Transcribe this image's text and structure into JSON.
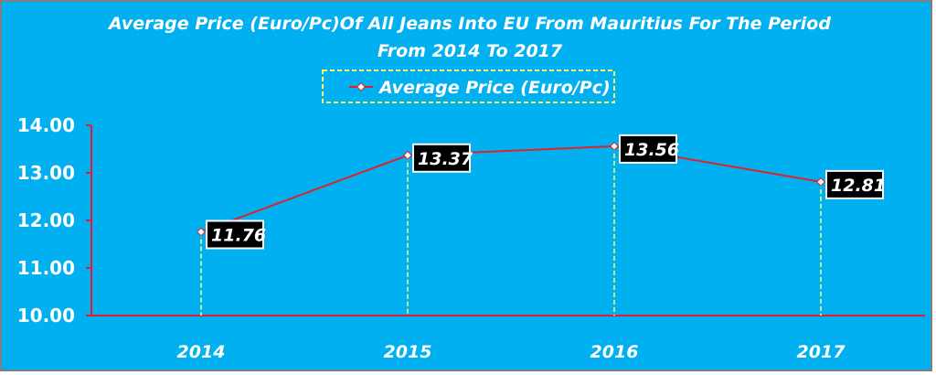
{
  "colors": {
    "background": "#00b0f0",
    "line": "#e0202a",
    "axis": "#e0202a",
    "drop_line": "#ffff66",
    "label_box": "#000000",
    "text": "#ffffff"
  },
  "chart_data": {
    "type": "line",
    "title": "Average Price (Euro/Pc)Of All Jeans Into EU From Mauritius For The Period",
    "subtitle": "From 2014 To 2017",
    "categories": [
      "2014",
      "2015",
      "2016",
      "2017"
    ],
    "series": [
      {
        "name": "Average Price (Euro/Pc)",
        "values": [
          11.76,
          13.37,
          13.56,
          12.81
        ]
      }
    ],
    "data_labels": [
      "11.76",
      "13.37",
      "13.56",
      "12.81"
    ],
    "ylim": [
      10.0,
      14.0
    ],
    "yticks": [
      "10.00",
      "11.00",
      "12.00",
      "13.00",
      "14.00"
    ],
    "legend_position": "top-center",
    "grid": false,
    "drop_lines": true
  }
}
